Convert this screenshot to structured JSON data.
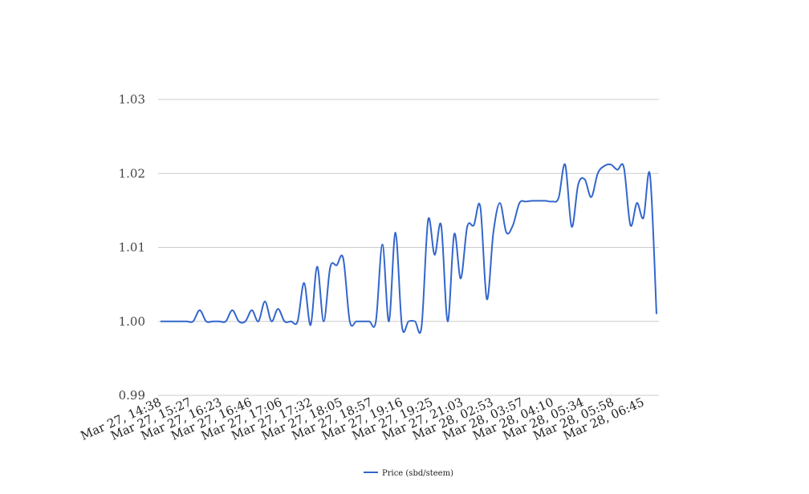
{
  "chart_data": {
    "type": "line",
    "title": "",
    "xlabel": "",
    "ylabel": "",
    "ylim": [
      0.99,
      1.03
    ],
    "yticks": [
      "0.99",
      "1.00",
      "1.01",
      "1.02",
      "1.03"
    ],
    "grid": true,
    "legend_position": "bottom",
    "x_tick_labels": [
      "Mar 27, 14:38",
      "Mar 27, 15:27",
      "Mar 27, 16:23",
      "Mar 27, 16:46",
      "Mar 27, 17:06",
      "Mar 27, 17:32",
      "Mar 27, 18:05",
      "Mar 27, 18:57",
      "Mar 27, 19:16",
      "Mar 27, 19:25",
      "Mar 27, 21:03",
      "Mar 28, 02:53",
      "Mar 28, 03:57",
      "Mar 28, 04:10",
      "Mar 28, 05:34",
      "Mar 28, 05:58",
      "Mar 28, 06:45"
    ],
    "series": [
      {
        "name": "Price (sbd/steem)",
        "color": "#3366cc",
        "values": [
          1.0,
          1.0,
          1.0,
          1.0,
          1.0,
          1.0,
          1.0015,
          1.0,
          1.0,
          1.0,
          1.0,
          1.0015,
          1.0,
          1.0,
          1.0015,
          1.0,
          1.0027,
          1.0,
          1.0017,
          1.0,
          1.0,
          1.0,
          1.0052,
          0.9995,
          1.0074,
          1.0,
          1.0073,
          1.0076,
          1.0085,
          1.0,
          1.0,
          1.0,
          1.0,
          1.0,
          1.0104,
          1.0,
          1.012,
          0.9993,
          1.0,
          1.0,
          0.9993,
          1.0137,
          1.009,
          1.013,
          1.0,
          1.0118,
          1.0058,
          1.0128,
          1.013,
          1.0155,
          1.003,
          1.012,
          1.016,
          1.012,
          1.013,
          1.016,
          1.0162,
          1.0163,
          1.0163,
          1.0163,
          1.0162,
          1.0167,
          1.0212,
          1.0128,
          1.0185,
          1.0192,
          1.0168,
          1.02,
          1.021,
          1.0212,
          1.0205,
          1.0208,
          1.013,
          1.016,
          1.014,
          1.0198,
          1.001
        ]
      }
    ]
  }
}
